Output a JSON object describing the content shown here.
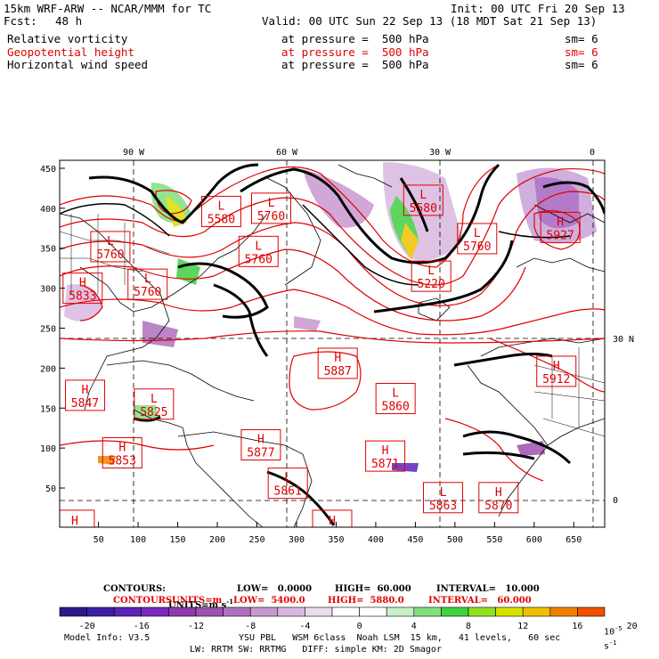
{
  "header": {
    "model_line": "15km WRF-ARW -- NCAR/MMM for TC",
    "init": "Init: 00 UTC Fri 20 Sep 13",
    "fcst_label": "Fcst:",
    "fcst_hours": "48 h",
    "valid": "Valid: 00 UTC Sun 22 Sep 13 (18 MDT Sat 21 Sep 13)",
    "fields": [
      {
        "name": "Relative vorticity",
        "level": "at pressure =  500 hPa",
        "sm": "sm= 6",
        "color": "#000000"
      },
      {
        "name": "Geopotential height",
        "level": "at pressure =  500 hPa",
        "sm": "sm= 6",
        "color": "#e00000"
      },
      {
        "name": "Horizontal wind speed",
        "level": "at pressure =  500 hPa",
        "sm": "sm= 6",
        "color": "#000000"
      }
    ]
  },
  "map": {
    "top_longitudes": [
      "90 W",
      "60 W",
      "30 W",
      "0"
    ],
    "right_latitudes": [
      "30 N",
      "0"
    ],
    "x_ticks": [
      "50",
      "100",
      "150",
      "200",
      "250",
      "300",
      "350",
      "400",
      "450",
      "500",
      "550",
      "600",
      "650"
    ],
    "y_ticks": [
      "50",
      "100",
      "150",
      "200",
      "250",
      "300",
      "350",
      "400",
      "450"
    ]
  },
  "chart_data": {
    "type": "contour-map",
    "x_range": [
      1,
      689
    ],
    "y_range": [
      1,
      460
    ],
    "grid": "dashed lat/lon lines",
    "height_contours": {
      "units": "m",
      "low": 5400.0,
      "high": 5880.0,
      "interval": 60.0,
      "color": "#e00000"
    },
    "wind_contours": {
      "units": "m s-1",
      "low": 0.0,
      "high": 60.0,
      "interval": 10.0,
      "color": "#000000"
    },
    "centers": [
      {
        "type": "H",
        "value": "5833",
        "x": 30,
        "y": 300
      },
      {
        "type": "L",
        "value": "5760",
        "x": 65,
        "y": 352
      },
      {
        "type": "L",
        "value": "5760",
        "x": 112,
        "y": 305
      },
      {
        "type": "L",
        "value": "5580",
        "x": 205,
        "y": 396
      },
      {
        "type": "L",
        "value": "5760",
        "x": 268,
        "y": 400
      },
      {
        "type": "L",
        "value": "5760",
        "x": 252,
        "y": 346
      },
      {
        "type": "L",
        "value": "5580",
        "x": 460,
        "y": 410
      },
      {
        "type": "L",
        "value": "5760",
        "x": 528,
        "y": 362
      },
      {
        "type": "L",
        "value": "5220",
        "x": 470,
        "y": 315
      },
      {
        "type": "H",
        "value": "5927",
        "x": 633,
        "y": 376
      },
      {
        "type": "H",
        "value": "5887",
        "x": 352,
        "y": 206
      },
      {
        "type": "L",
        "value": "5860",
        "x": 425,
        "y": 162
      },
      {
        "type": "H",
        "value": "5912",
        "x": 628,
        "y": 196
      },
      {
        "type": "H",
        "value": "5847",
        "x": 33,
        "y": 166
      },
      {
        "type": "L",
        "value": "5825",
        "x": 120,
        "y": 155
      },
      {
        "type": "H",
        "value": "5853",
        "x": 80,
        "y": 94
      },
      {
        "type": "H",
        "value": "5877",
        "x": 255,
        "y": 104
      },
      {
        "type": "H",
        "value": "5871",
        "x": 412,
        "y": 90
      },
      {
        "type": "L",
        "value": "5861",
        "x": 289,
        "y": 56
      },
      {
        "type": "L",
        "value": "5863",
        "x": 485,
        "y": 38
      },
      {
        "type": "H",
        "value": "5870",
        "x": 555,
        "y": 38
      },
      {
        "type": "H",
        "value": "",
        "x": 20,
        "y": 10
      },
      {
        "type": "H",
        "value": "",
        "x": 345,
        "y": 10
      }
    ]
  },
  "footer": {
    "contours_black": {
      "label": "CONTOURS:",
      "units": "UNITS=m s",
      "sup": "-1",
      "low": "LOW=   0.0000",
      "high": "HIGH=  60.000",
      "interval": "INTERVAL=   10.000"
    },
    "contours_red": {
      "label": "CONTOURS:",
      "units": "UNITS=m",
      "low": "LOW=  5400.0",
      "high": "HIGH=  5880.0",
      "interval": "INTERVAL=   60.000"
    },
    "colorbar_labels": [
      "-20",
      "-16",
      "-12",
      "-8",
      "-4",
      "0",
      "4",
      "8",
      "12",
      "16",
      "20"
    ],
    "colorbar_unit": "10",
    "colorbar_unit_sup": "-5",
    "colorbar_unit_tail": "s",
    "colorbar_unit_tail_sup": "-1",
    "colorbar_colors": [
      "#2a1a8a",
      "#3b1fa8",
      "#5a22b8",
      "#7a2ac0",
      "#8e3aaf",
      "#a050b0",
      "#b070c0",
      "#c898d0",
      "#d8b8e0",
      "#ecdcf0",
      "#ffffff",
      "#ffffff",
      "#c8f0c8",
      "#80e080",
      "#40d040",
      "#90e020",
      "#d8e000",
      "#f0c000",
      "#f08000",
      "#f05000"
    ],
    "model_info": "Model Info: V3.5",
    "physics_1": "YSU PBL   WSM 6class  Noah LSM  15 km,   41 levels,   60 sec",
    "physics_2": "LW: RRTM SW: RRTMG   DIFF: simple KM: 2D Smagor"
  }
}
